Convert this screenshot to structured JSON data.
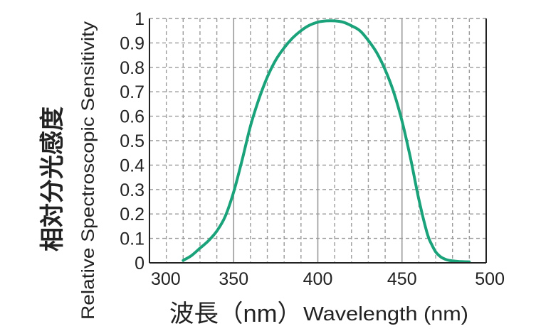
{
  "chart_data": {
    "type": "line",
    "title": "",
    "ylabel_jp": "相対分光感度",
    "ylabel_en": "Relative Spectroscopic Sensitivity",
    "xlabel_jp": "波長（nm）",
    "xlabel_en": "Wavelength (nm)",
    "xlim": [
      300,
      500
    ],
    "ylim": [
      0,
      1
    ],
    "x_ticks": [
      300,
      350,
      400,
      450,
      500
    ],
    "x_tick_labels": [
      "300",
      "350",
      "400",
      "450",
      "500"
    ],
    "y_ticks": [
      0,
      0.1,
      0.2,
      0.3,
      0.4,
      0.5,
      0.6,
      0.7,
      0.8,
      0.9,
      1
    ],
    "y_tick_labels": [
      "0",
      "0.1",
      "0.2",
      "0.3",
      "0.4",
      "0.5",
      "0.6",
      "0.7",
      "0.8",
      "0.9",
      "1"
    ],
    "x_grid_major": [
      310,
      320,
      330,
      340,
      350,
      360,
      370,
      380,
      390,
      400,
      410,
      420,
      430,
      440,
      450,
      460,
      470,
      480,
      490
    ],
    "x_grid_solid": [
      350,
      400,
      450
    ],
    "grid": true,
    "series": [
      {
        "name": "Relative Spectroscopic Sensitivity",
        "color": "#1aa37a",
        "x": [
          320,
          325,
          330,
          335,
          340,
          345,
          350,
          355,
          360,
          365,
          370,
          375,
          380,
          385,
          390,
          395,
          400,
          405,
          410,
          415,
          420,
          425,
          430,
          435,
          440,
          445,
          450,
          455,
          460,
          465,
          468,
          470,
          472,
          474,
          476,
          478,
          480,
          485,
          490
        ],
        "y": [
          0.01,
          0.03,
          0.06,
          0.09,
          0.13,
          0.19,
          0.29,
          0.42,
          0.56,
          0.67,
          0.76,
          0.83,
          0.88,
          0.92,
          0.95,
          0.972,
          0.985,
          0.99,
          0.99,
          0.985,
          0.97,
          0.95,
          0.91,
          0.86,
          0.79,
          0.7,
          0.58,
          0.43,
          0.26,
          0.12,
          0.07,
          0.045,
          0.03,
          0.02,
          0.014,
          0.01,
          0.008,
          0.005,
          0.004
        ]
      }
    ],
    "colors": {
      "grid": "#9a9a9a",
      "axis": "#222222",
      "curve": "#1aa37a",
      "text": "#222222"
    }
  }
}
